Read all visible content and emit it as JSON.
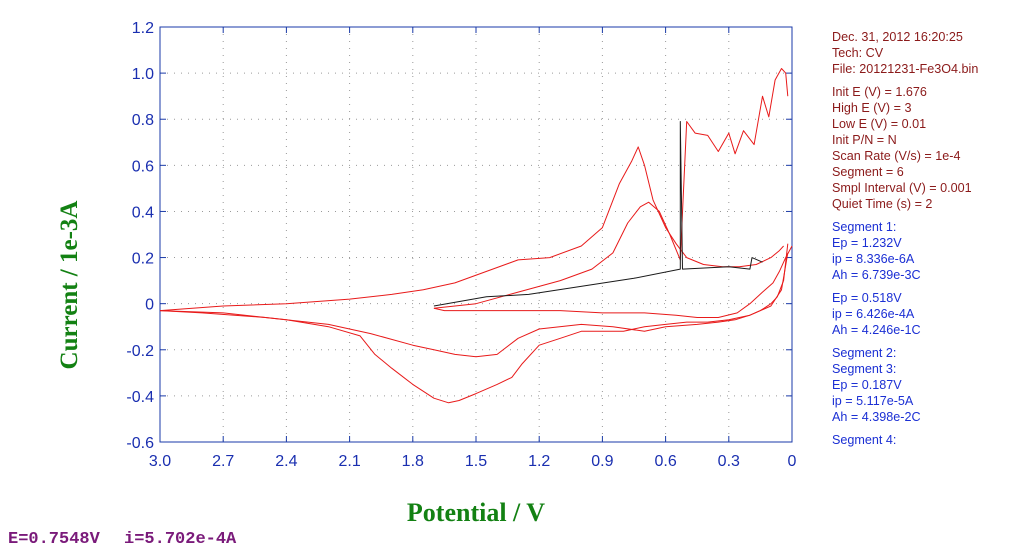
{
  "chart_data": {
    "type": "line",
    "title": "",
    "xlabel": "Potential / V",
    "ylabel": "Current / 1e-3A",
    "xlim": [
      3.0,
      0.0
    ],
    "ylim": [
      -0.6,
      1.2
    ],
    "x_reversed": true,
    "x_ticks": [
      "3.0",
      "2.7",
      "2.4",
      "2.1",
      "1.8",
      "1.5",
      "1.2",
      "0.9",
      "0.6",
      "0.3",
      "0"
    ],
    "y_ticks": [
      "1.2",
      "1.0",
      "0.8",
      "0.6",
      "0.4",
      "0.2",
      "0",
      "-0.2",
      "-0.4",
      "-0.6"
    ],
    "grid": true,
    "series": [
      {
        "color": "#e81a1a",
        "x": [
          3.0,
          2.7,
          2.4,
          2.1,
          1.9,
          1.75,
          1.6,
          1.45,
          1.3,
          1.15,
          1.0,
          0.9,
          0.82,
          0.76,
          0.73,
          0.7,
          0.66,
          0.6,
          0.55,
          0.5,
          0.42,
          0.33,
          0.25,
          0.17,
          0.1,
          0.06,
          0.04
        ],
        "y": [
          -0.03,
          -0.01,
          0.0,
          0.02,
          0.04,
          0.06,
          0.09,
          0.14,
          0.19,
          0.2,
          0.25,
          0.33,
          0.52,
          0.62,
          0.68,
          0.6,
          0.45,
          0.33,
          0.26,
          0.2,
          0.17,
          0.16,
          0.16,
          0.17,
          0.2,
          0.23,
          0.25
        ]
      },
      {
        "color": "#e81a1a",
        "x": [
          1.7,
          1.5,
          1.3,
          1.1,
          0.95,
          0.85,
          0.78,
          0.72,
          0.68,
          0.63,
          0.58,
          0.53,
          0.5,
          0.46,
          0.4,
          0.35,
          0.3,
          0.27,
          0.23,
          0.18,
          0.14,
          0.11,
          0.08,
          0.05,
          0.03,
          0.02
        ],
        "y": [
          -0.02,
          0.0,
          0.05,
          0.1,
          0.15,
          0.22,
          0.35,
          0.42,
          0.44,
          0.4,
          0.3,
          0.19,
          0.79,
          0.74,
          0.73,
          0.66,
          0.74,
          0.65,
          0.75,
          0.69,
          0.9,
          0.81,
          0.97,
          1.02,
          1.0,
          0.9
        ]
      },
      {
        "color": "#e81a1a",
        "x": [
          0.02,
          0.04,
          0.07,
          0.1,
          0.15,
          0.2,
          0.27,
          0.35,
          0.45,
          0.6,
          0.7,
          0.85,
          1.0,
          1.2,
          1.3,
          1.4,
          1.5,
          1.6,
          1.7,
          1.8,
          2.0,
          2.2,
          2.5,
          2.8,
          3.0
        ],
        "y": [
          0.26,
          0.1,
          0.03,
          0.0,
          -0.03,
          -0.05,
          -0.07,
          -0.08,
          -0.09,
          -0.1,
          -0.12,
          -0.1,
          -0.09,
          -0.11,
          -0.15,
          -0.22,
          -0.23,
          -0.22,
          -0.2,
          -0.18,
          -0.13,
          -0.09,
          -0.06,
          -0.04,
          -0.03
        ]
      },
      {
        "color": "#e81a1a",
        "x": [
          0.02,
          0.05,
          0.1,
          0.2,
          0.3,
          0.4,
          0.5,
          0.6,
          0.7,
          0.8,
          0.9,
          1.0,
          1.1,
          1.2,
          1.28,
          1.33,
          1.4,
          1.5,
          1.58,
          1.63,
          1.7,
          1.8,
          1.9,
          1.98,
          2.05,
          2.2,
          2.4,
          2.7,
          3.0
        ],
        "y": [
          0.22,
          0.06,
          -0.01,
          -0.05,
          -0.07,
          -0.08,
          -0.08,
          -0.09,
          -0.1,
          -0.12,
          -0.12,
          -0.12,
          -0.15,
          -0.18,
          -0.26,
          -0.32,
          -0.35,
          -0.39,
          -0.42,
          -0.43,
          -0.41,
          -0.35,
          -0.28,
          -0.22,
          -0.14,
          -0.1,
          -0.07,
          -0.04,
          -0.03
        ]
      },
      {
        "color": "#e81a1a",
        "x": [
          0.0,
          0.03,
          0.06,
          0.09,
          0.14,
          0.2,
          0.26,
          0.35,
          0.45,
          0.55,
          0.7,
          0.9,
          1.1,
          1.3,
          1.5,
          1.65,
          1.7
        ],
        "y": [
          0.25,
          0.2,
          0.14,
          0.09,
          0.05,
          0.0,
          -0.04,
          -0.06,
          -0.06,
          -0.05,
          -0.04,
          -0.04,
          -0.03,
          -0.03,
          -0.03,
          -0.03,
          -0.02
        ]
      },
      {
        "color": "#1a1a1a",
        "x": [
          1.7,
          1.45,
          1.25,
          0.75,
          0.53,
          0.53,
          0.52,
          0.3,
          0.2,
          0.19,
          0.14
        ],
        "y": [
          -0.01,
          0.03,
          0.04,
          0.11,
          0.15,
          0.79,
          0.15,
          0.16,
          0.15,
          0.2,
          0.18
        ]
      }
    ]
  },
  "status": {
    "potential": "E=0.7548V",
    "current": "i=5.702e-4A"
  },
  "info": {
    "groups": [
      {
        "color": "brown",
        "lines": [
          "Dec. 31, 2012   16:20:25",
          "Tech: CV",
          "File: 20121231-Fe3O4.bin"
        ]
      },
      {
        "color": "brown",
        "lines": [
          "Init E (V) = 1.676",
          "High E (V) = 3",
          "Low E (V) = 0.01",
          "Init P/N = N",
          "Scan Rate (V/s) = 1e-4",
          "Segment = 6",
          "Smpl Interval (V) = 0.001",
          "Quiet Time (s) = 2"
        ]
      },
      {
        "color": "blue",
        "lines": [
          "Segment 1:",
          "Ep = 1.232V",
          "ip = 8.336e-6A",
          "Ah = 6.739e-3C"
        ]
      },
      {
        "color": "blue",
        "lines": [
          "Ep = 0.518V",
          "ip = 6.426e-4A",
          "Ah = 4.246e-1C"
        ]
      },
      {
        "color": "blue",
        "lines": [
          "Segment 2:",
          "Segment 3:",
          "Ep = 0.187V",
          "ip = 5.117e-5A",
          "Ah = 4.398e-2C"
        ]
      },
      {
        "color": "blue",
        "lines": [
          "Segment 4:"
        ]
      }
    ]
  }
}
